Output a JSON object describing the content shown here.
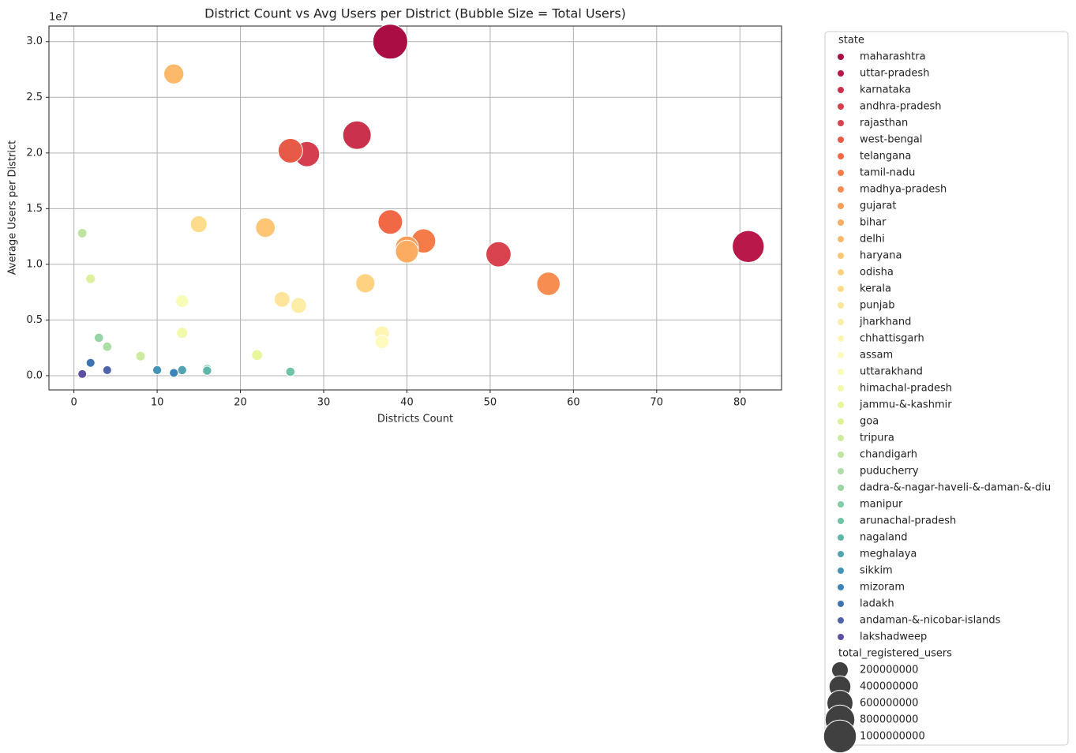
{
  "chart_data": {
    "type": "bubble",
    "title": "District Count vs Avg Users per District (Bubble Size = Total Users)",
    "x_label": "Districts Count",
    "y_label": "Average Users per District",
    "y_offset_label": "1e7",
    "xlim": [
      -3,
      85
    ],
    "ylim": [
      -1280000,
      31400000
    ],
    "xticks": [
      0,
      10,
      20,
      30,
      40,
      50,
      60,
      70,
      80
    ],
    "yticks": [
      {
        "value": 0,
        "label": "0.0"
      },
      {
        "value": 5000000,
        "label": "0.5"
      },
      {
        "value": 10000000,
        "label": "1.0"
      },
      {
        "value": 15000000,
        "label": "1.5"
      },
      {
        "value": 20000000,
        "label": "2.0"
      },
      {
        "value": 25000000,
        "label": "2.5"
      },
      {
        "value": 30000000,
        "label": "3.0"
      }
    ],
    "grid": true,
    "legend_title": "state",
    "size_legend": {
      "title": "total_registered_users",
      "color": "#404040",
      "values": [
        200000000,
        400000000,
        600000000,
        800000000,
        1000000000
      ]
    },
    "series": [
      {
        "name": "maharashtra",
        "color": "#a90d44",
        "x": [
          38
        ],
        "values": [
          30000000
        ],
        "sizes": [
          1140000000
        ]
      },
      {
        "name": "uttar-pradesh",
        "color": "#b8194a",
        "x": [
          81
        ],
        "values": [
          11600000
        ],
        "sizes": [
          940000000
        ]
      },
      {
        "name": "karnataka",
        "color": "#c9314c",
        "x": [
          34
        ],
        "values": [
          21600000
        ],
        "sizes": [
          734000000
        ]
      },
      {
        "name": "andhra-pradesh",
        "color": "#d53e4f",
        "x": [
          28
        ],
        "values": [
          19900000
        ],
        "sizes": [
          557000000
        ]
      },
      {
        "name": "rajasthan",
        "color": "#d8434f",
        "x": [
          51
        ],
        "values": [
          10900000
        ],
        "sizes": [
          556000000
        ]
      },
      {
        "name": "west-bengal",
        "color": "#e65a47",
        "x": [
          26
        ],
        "values": [
          20200000
        ],
        "sizes": [
          525000000
        ]
      },
      {
        "name": "telangana",
        "color": "#f06845",
        "x": [
          38
        ],
        "values": [
          13800000
        ],
        "sizes": [
          524000000
        ]
      },
      {
        "name": "tamil-nadu",
        "color": "#f57b48",
        "x": [
          42
        ],
        "values": [
          12100000
        ],
        "sizes": [
          508000000
        ]
      },
      {
        "name": "madhya-pradesh",
        "color": "#f88d52",
        "x": [
          57
        ],
        "values": [
          8250000
        ],
        "sizes": [
          470000000
        ]
      },
      {
        "name": "gujarat",
        "color": "#fa9d59",
        "x": [
          40
        ],
        "values": [
          11500000
        ],
        "sizes": [
          460000000
        ]
      },
      {
        "name": "bihar",
        "color": "#fcac60",
        "x": [
          40
        ],
        "values": [
          11150000
        ],
        "sizes": [
          446000000
        ]
      },
      {
        "name": "delhi",
        "color": "#fdb96a",
        "x": [
          12
        ],
        "values": [
          27100000
        ],
        "sizes": [
          325000000
        ]
      },
      {
        "name": "haryana",
        "color": "#fdc574",
        "x": [
          23
        ],
        "values": [
          13300000
        ],
        "sizes": [
          306000000
        ]
      },
      {
        "name": "odisha",
        "color": "#fed280",
        "x": [
          35
        ],
        "values": [
          8300000
        ],
        "sizes": [
          290000000
        ]
      },
      {
        "name": "kerala",
        "color": "#fedc8a",
        "x": [
          15
        ],
        "values": [
          13600000
        ],
        "sizes": [
          204000000
        ]
      },
      {
        "name": "punjab",
        "color": "#fee599",
        "x": [
          25
        ],
        "values": [
          6850000
        ],
        "sizes": [
          171000000
        ]
      },
      {
        "name": "jharkhand",
        "color": "#feeda6",
        "x": [
          27
        ],
        "values": [
          6300000
        ],
        "sizes": [
          170000000
        ]
      },
      {
        "name": "chhattisgarh",
        "color": "#fff5b2",
        "x": [
          37
        ],
        "values": [
          3800000
        ],
        "sizes": [
          141000000
        ]
      },
      {
        "name": "assam",
        "color": "#fffbbd",
        "x": [
          37
        ],
        "values": [
          3050000
        ],
        "sizes": [
          113000000
        ]
      },
      {
        "name": "uttarakhand",
        "color": "#f9fcb7",
        "x": [
          13
        ],
        "values": [
          6700000
        ],
        "sizes": [
          87000000
        ]
      },
      {
        "name": "himachal-pradesh",
        "color": "#f1f9ab",
        "x": [
          13
        ],
        "values": [
          3850000
        ],
        "sizes": [
          50000000
        ]
      },
      {
        "name": "jammu-&-kashmir",
        "color": "#e8f69e",
        "x": [
          22
        ],
        "values": [
          1850000
        ],
        "sizes": [
          41000000
        ]
      },
      {
        "name": "goa",
        "color": "#dcf19a",
        "x": [
          2
        ],
        "values": [
          8700000
        ],
        "sizes": [
          17000000
        ]
      },
      {
        "name": "tripura",
        "color": "#cdeb9d",
        "x": [
          8
        ],
        "values": [
          1750000
        ],
        "sizes": [
          14000000
        ]
      },
      {
        "name": "chandigarh",
        "color": "#bde5a0",
        "x": [
          1
        ],
        "values": [
          12800000
        ],
        "sizes": [
          13000000
        ]
      },
      {
        "name": "puducherry",
        "color": "#abdda4",
        "x": [
          4
        ],
        "values": [
          2600000
        ],
        "sizes": [
          10000000
        ]
      },
      {
        "name": "dadra-&-nagar-haveli-&-daman-&-diu",
        "color": "#98d5a4",
        "x": [
          3
        ],
        "values": [
          3400000
        ],
        "sizes": [
          10000000
        ]
      },
      {
        "name": "manipur",
        "color": "#83cca5",
        "x": [
          16
        ],
        "values": [
          600000
        ],
        "sizes": [
          10000000
        ]
      },
      {
        "name": "arunachal-pradesh",
        "color": "#70c4a6",
        "x": [
          26
        ],
        "values": [
          350000
        ],
        "sizes": [
          9000000
        ]
      },
      {
        "name": "nagaland",
        "color": "#5fb6aa",
        "x": [
          16
        ],
        "values": [
          450000
        ],
        "sizes": [
          7000000
        ]
      },
      {
        "name": "meghalaya",
        "color": "#52a5b0",
        "x": [
          13
        ],
        "values": [
          500000
        ],
        "sizes": [
          6500000
        ]
      },
      {
        "name": "sikkim",
        "color": "#4494b6",
        "x": [
          10
        ],
        "values": [
          500000
        ],
        "sizes": [
          5000000
        ]
      },
      {
        "name": "mizoram",
        "color": "#3a84bb",
        "x": [
          12
        ],
        "values": [
          250000
        ],
        "sizes": [
          3000000
        ]
      },
      {
        "name": "ladakh",
        "color": "#3f74b2",
        "x": [
          2
        ],
        "values": [
          1150000
        ],
        "sizes": [
          2300000
        ]
      },
      {
        "name": "andaman-&-nicobar-islands",
        "color": "#4e63aa",
        "x": [
          4
        ],
        "values": [
          500000
        ],
        "sizes": [
          2000000
        ]
      },
      {
        "name": "lakshadweep",
        "color": "#5e4fa2",
        "x": [
          1
        ],
        "values": [
          150000
        ],
        "sizes": [
          150000
        ]
      }
    ]
  }
}
